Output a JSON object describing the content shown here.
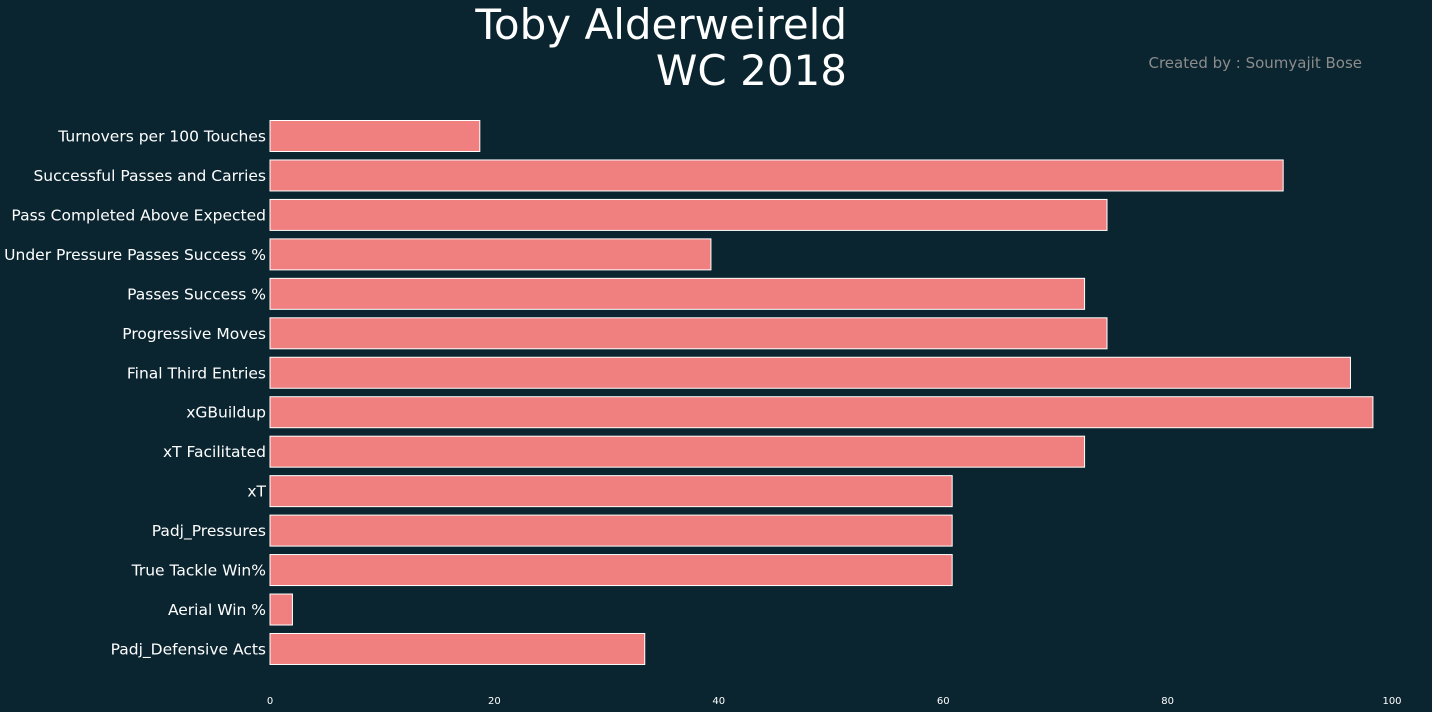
{
  "chart_data": {
    "type": "bar",
    "orientation": "horizontal",
    "title": [
      "Toby Alderweireld",
      "WC 2018"
    ],
    "credit": "Created by : Soumyajit Bose",
    "categories": [
      "Turnovers per 100 Touches",
      "Successful Passes and Carries",
      "Pass Completed Above Expected",
      "Under Pressure Passes Success %",
      "Passes Success %",
      "Progressive Moves",
      "Final Third Entries",
      "xGBuildup",
      "xT Facilitated",
      "xT",
      "Padj_Pressures",
      "True Tackle Win%",
      "Aerial Win %",
      "Padj_Defensive Acts"
    ],
    "values": [
      18.7,
      90.3,
      74.6,
      39.3,
      72.6,
      74.6,
      96.3,
      98.3,
      72.6,
      60.8,
      60.8,
      60.8,
      2.0,
      33.4
    ],
    "xlim": [
      0,
      100
    ],
    "xticks": [
      0,
      20,
      40,
      60,
      80,
      100
    ],
    "grid": false,
    "colors": {
      "background": "#0a2530",
      "bar": "#f08080",
      "bar_edge": "#ffffff",
      "text": "#ffffff",
      "credit": "#8c8c8c"
    }
  }
}
